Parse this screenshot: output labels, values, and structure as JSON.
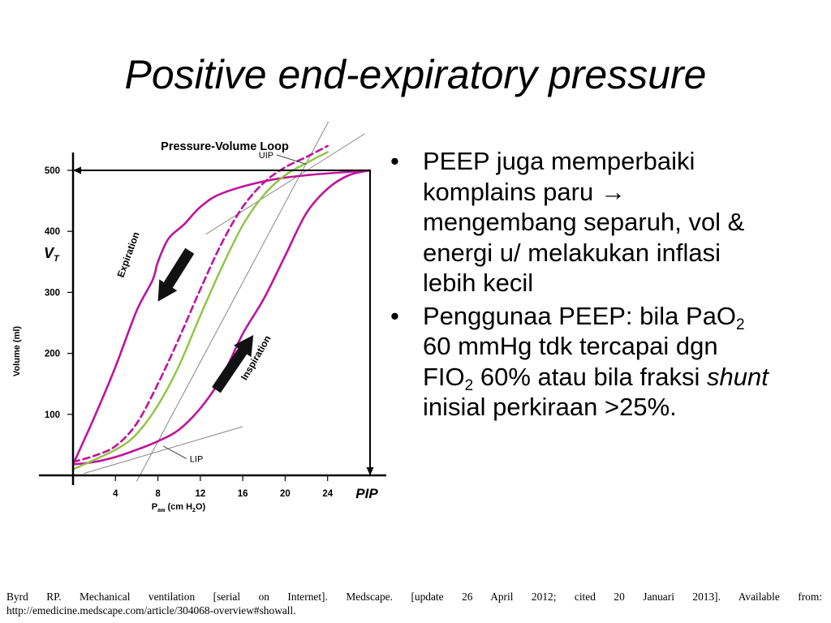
{
  "slide": {
    "title": "Positive end-expiratory pressure",
    "bullets": [
      {
        "text_1": "PEEP juga memperbaiki komplains paru ",
        "arrow_glyph": "→",
        "text_2": " mengembang separuh, vol & energi u/ melakukan inflasi lebih kecil"
      },
      {
        "text_1": "Penggunaa PEEP: bila PaO",
        "sub_1": "2",
        "text_2": " 60 mmHg tdk tercapai dgn FIO",
        "sub_2": "2",
        "text_3": " 60% atau bila fraksi ",
        "italic": "shunt",
        "text_4": " inisial perkiraan >25%."
      }
    ],
    "citation_line1": "Byrd RP. Mechanical ventilation [serial on Internet]. Medscape. [update 26 April 2012; cited 20 Januari 2013]. Available from:",
    "citation_line2": "http://emedicine.medscape.com/article/304068-overview#showall."
  },
  "chart_data": {
    "type": "line",
    "title": "Pressure-Volume Loop",
    "xlabel": "P",
    "xlabel_sub": "aw",
    "xlabel_unit": "(cm H",
    "xlabel_unit_sub": "2",
    "xlabel_unit_end": "O)",
    "ylabel": "Volume (ml)",
    "ylabel_symbol": "V",
    "ylabel_symbol_sub": "T",
    "x_end_label": "PIP",
    "xlim": [
      0,
      28
    ],
    "ylim": [
      0,
      500
    ],
    "x_ticks": [
      4,
      8,
      12,
      16,
      20,
      24
    ],
    "y_ticks": [
      100,
      200,
      300,
      400,
      500
    ],
    "colors": {
      "loop": "#c0139c",
      "peep": "#c0139c",
      "compliance": "#8cc63f",
      "axis": "#000000",
      "arrow": "#111111",
      "tangent": "#888888"
    },
    "annotations": [
      {
        "text": "Expiration",
        "x": 5.5,
        "y": 360,
        "angle": -70
      },
      {
        "text": "Inspiration",
        "x": 17.5,
        "y": 190,
        "angle": -60
      },
      {
        "text": "UIP",
        "x": 17.5,
        "y": 520,
        "pointer_to": [
          22,
          510
        ]
      },
      {
        "text": "LIP",
        "x": 11,
        "y": 22,
        "pointer_to": [
          8.5,
          48
        ]
      }
    ],
    "series": [
      {
        "role": "expiration-curve",
        "points": [
          [
            28,
            500
          ],
          [
            22,
            492
          ],
          [
            18,
            482
          ],
          [
            14,
            462
          ],
          [
            12,
            440
          ],
          [
            10.5,
            412
          ],
          [
            9,
            388
          ],
          [
            8,
            350
          ],
          [
            7.5,
            320
          ],
          [
            6,
            270
          ],
          [
            4,
            178
          ],
          [
            2,
            95
          ],
          [
            0,
            18
          ]
        ]
      },
      {
        "role": "inspiration-curve",
        "points": [
          [
            0,
            18
          ],
          [
            2,
            22
          ],
          [
            4,
            30
          ],
          [
            6,
            42
          ],
          [
            8,
            56
          ],
          [
            10,
            75
          ],
          [
            12,
            110
          ],
          [
            14,
            160
          ],
          [
            16,
            232
          ],
          [
            18,
            290
          ],
          [
            20,
            360
          ],
          [
            22,
            430
          ],
          [
            24,
            470
          ],
          [
            26,
            492
          ],
          [
            28,
            500
          ]
        ]
      },
      {
        "role": "peep-curve",
        "dashed": true,
        "points": [
          [
            0,
            22
          ],
          [
            2,
            32
          ],
          [
            4,
            48
          ],
          [
            6,
            85
          ],
          [
            8,
            150
          ],
          [
            10,
            225
          ],
          [
            12,
            305
          ],
          [
            14,
            380
          ],
          [
            16,
            440
          ],
          [
            18,
            480
          ],
          [
            20,
            505
          ],
          [
            22,
            522
          ],
          [
            24,
            540
          ]
        ]
      },
      {
        "role": "compliance-curve",
        "points": [
          [
            0,
            10
          ],
          [
            4,
            42
          ],
          [
            6,
            68
          ],
          [
            8,
            115
          ],
          [
            10,
            180
          ],
          [
            12,
            262
          ],
          [
            14,
            340
          ],
          [
            16,
            410
          ],
          [
            18,
            460
          ],
          [
            20,
            492
          ],
          [
            22,
            512
          ],
          [
            24,
            530
          ]
        ]
      }
    ],
    "tangents": [
      {
        "role": "uip-tangent",
        "points": [
          [
            12.5,
            395
          ],
          [
            27.5,
            560
          ]
        ]
      },
      {
        "role": "lip-tangent",
        "points": [
          [
            1,
            3
          ],
          [
            16,
            80
          ]
        ]
      },
      {
        "role": "steep-tangent",
        "points": [
          [
            6,
            -10
          ],
          [
            25,
            610
          ]
        ]
      }
    ],
    "arrows": [
      {
        "role": "expiration-arrow",
        "from": [
          11,
          368
        ],
        "to": [
          8,
          285
        ]
      },
      {
        "role": "inspiration-arrow",
        "from": [
          13.5,
          140
        ],
        "to": [
          17,
          230
        ]
      }
    ],
    "guides": [
      {
        "role": "top-guide",
        "from": [
          28,
          500
        ],
        "to": [
          0,
          500
        ]
      },
      {
        "role": "right-guide",
        "from": [
          28,
          500
        ],
        "to": [
          28,
          0
        ]
      }
    ]
  }
}
